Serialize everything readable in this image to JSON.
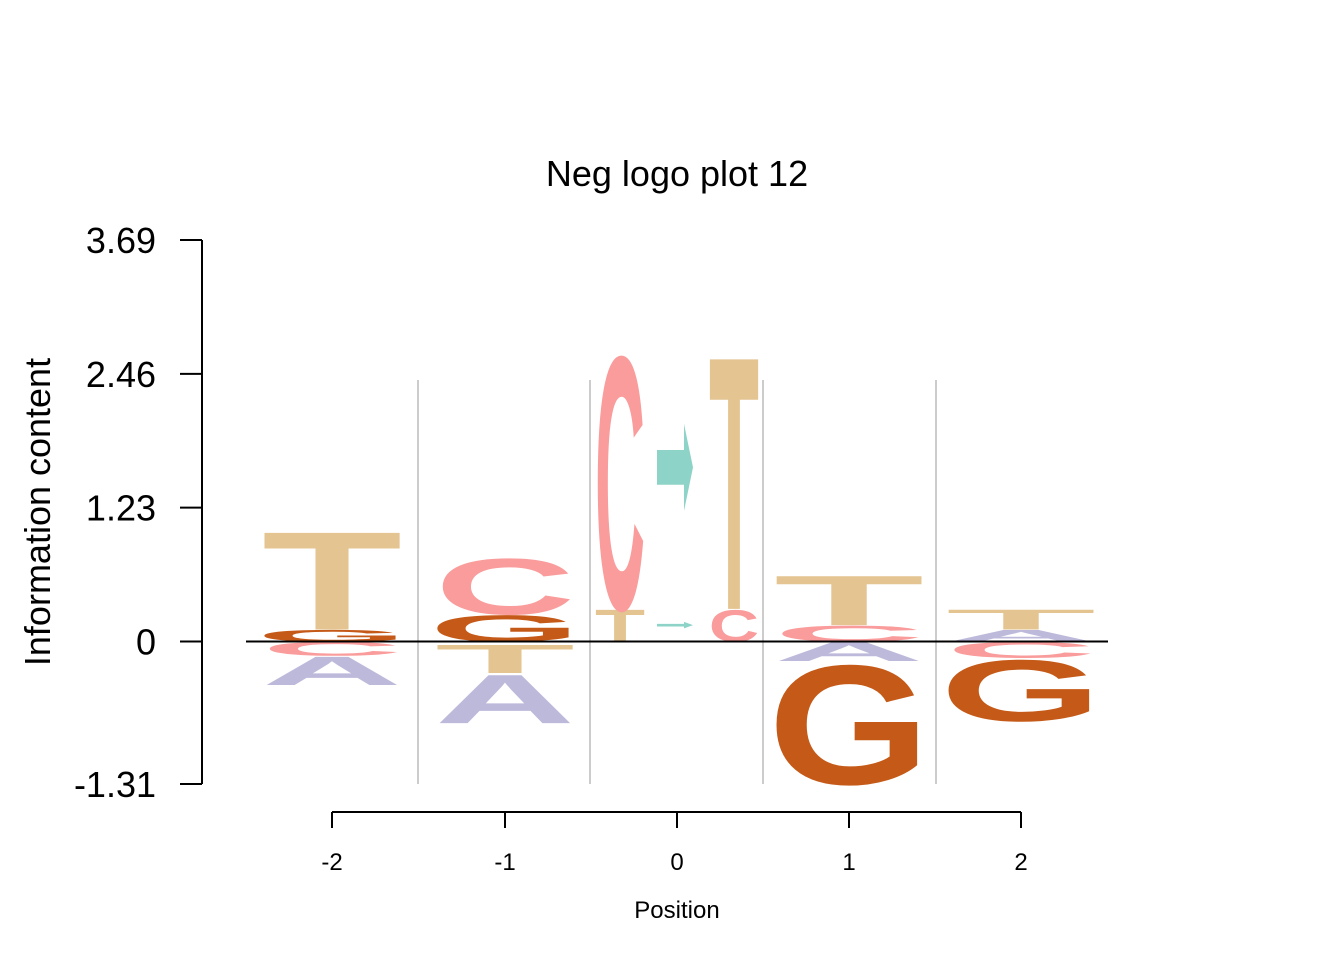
{
  "chart_data": {
    "type": "sequence-logo",
    "title": "Neg logo plot 12",
    "xlabel": "Position",
    "ylabel": "Information content",
    "ylim": [
      -1.31,
      3.69
    ],
    "yticks": [
      "3.69",
      "2.46",
      "1.23",
      "0",
      "-1.31"
    ],
    "positions": [
      "-2",
      "-1",
      "0",
      "1",
      "2"
    ],
    "colors": {
      "A": "#bdb9db",
      "C": "#f99c9b",
      "G": "#c55a18",
      "T": "#e4c490",
      "Arrow": "#8dd3c7"
    },
    "columns": [
      {
        "position": "-2",
        "letters": [
          {
            "letter": "G",
            "from": 0.0,
            "to": 0.11
          },
          {
            "letter": "T",
            "from": 0.11,
            "to": 1.04
          },
          {
            "letter": "C",
            "from": -0.13,
            "to": 0.0
          },
          {
            "letter": "A",
            "from": -0.4,
            "to": -0.13
          }
        ]
      },
      {
        "position": "-1",
        "letters": [
          {
            "letter": "G",
            "from": 0.0,
            "to": 0.25
          },
          {
            "letter": "C",
            "from": 0.25,
            "to": 0.78
          },
          {
            "letter": "T",
            "from": -0.29,
            "to": -0.02
          },
          {
            "letter": "A",
            "from": -0.75,
            "to": -0.29
          }
        ]
      },
      {
        "position": "0",
        "letters": [
          {
            "letter": "T",
            "from": 0.0,
            "to": 0.3
          },
          {
            "letter": "C",
            "from": 0.3,
            "to": 2.7
          },
          {
            "letter": "Arrow",
            "from": 0.12,
            "to": 0.18
          },
          {
            "letter": "Arrow",
            "from": 1.2,
            "to": 2.0
          },
          {
            "letter": "C",
            "from": 0.0,
            "to": 0.3
          },
          {
            "letter": "T",
            "from": 0.3,
            "to": 2.7
          }
        ]
      },
      {
        "position": "1",
        "letters": [
          {
            "letter": "C",
            "from": 0.0,
            "to": 0.15
          },
          {
            "letter": "T",
            "from": 0.15,
            "to": 0.62
          },
          {
            "letter": "A",
            "from": -0.18,
            "to": 0.0
          },
          {
            "letter": "G",
            "from": -1.31,
            "to": -0.18
          }
        ]
      },
      {
        "position": "2",
        "letters": [
          {
            "letter": "A",
            "from": 0.0,
            "to": 0.11
          },
          {
            "letter": "T",
            "from": 0.11,
            "to": 0.3
          },
          {
            "letter": "C",
            "from": -0.15,
            "to": 0.0
          },
          {
            "letter": "G",
            "from": -0.73,
            "to": -0.15
          }
        ]
      }
    ]
  }
}
